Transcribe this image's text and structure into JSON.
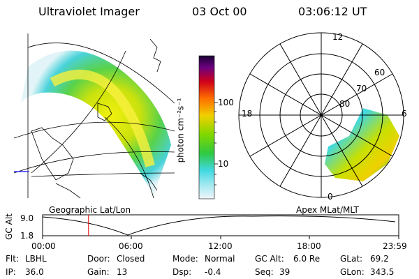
{
  "header": {
    "title": "Ultraviolet Imager",
    "date": "03 Oct 00",
    "time": "03:06:12 UT"
  },
  "colorbar": {
    "label": "photon cm⁻²s⁻¹",
    "ticks": [
      "100",
      "10"
    ],
    "colors": [
      "#1a0033",
      "#2a0060",
      "#6a0080",
      "#a8005a",
      "#d0001a",
      "#f03000",
      "#ff7000",
      "#ffa000",
      "#f0d000",
      "#c8e000",
      "#80d800",
      "#30c840",
      "#20c8a0",
      "#40d8e0",
      "#a0e8f0",
      "#e0f0f8"
    ]
  },
  "left_panel": {
    "caption": "Geographic Lat/Lon"
  },
  "right_panel": {
    "caption": "Apex  MLat/MLT",
    "mlt_labels": {
      "top": "12",
      "left": "18",
      "right": "6",
      "bottom": "0"
    },
    "mlat_labels": [
      "60",
      "70",
      "80"
    ]
  },
  "timeline": {
    "ylabel": "GC Alt",
    "yticks": [
      "9.0",
      "1.8"
    ],
    "xticks": [
      "00:00",
      "06:00",
      "12:00",
      "18:00",
      "23:59"
    ],
    "marker_fraction": 0.129,
    "marker_color": "#e00000"
  },
  "status": [
    [
      {
        "k": "Flt:",
        "v": "LBHL"
      },
      {
        "k": "Door:",
        "v": "Closed"
      },
      {
        "k": "Mode:",
        "v": "Normal"
      },
      {
        "k": "GC Alt:",
        "v": "6.0 Re"
      },
      {
        "k": "GLat:",
        "v": "69.2"
      }
    ],
    [
      {
        "k": "IP:",
        "v": "36.0"
      },
      {
        "k": "Gain:",
        "v": "13"
      },
      {
        "k": "Dsp:",
        "v": "-0.4"
      },
      {
        "k": "Seq:",
        "v": "39"
      },
      {
        "k": "GLon:",
        "v": "343.5"
      }
    ]
  ]
}
